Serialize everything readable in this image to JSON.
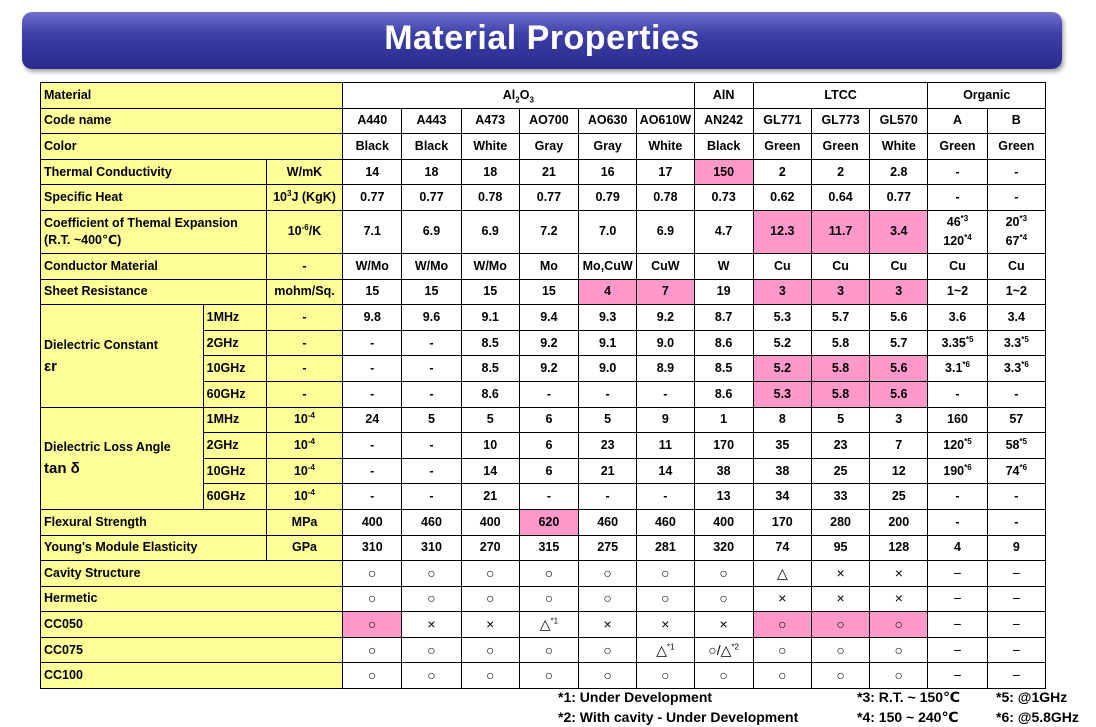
{
  "title": "Material Properties",
  "groups": {
    "al2o3": "Al",
    "al2o3_sub1": "2",
    "al2o3_mid": "O",
    "al2o3_sub2": "3",
    "aln": "AlN",
    "ltcc": "LTCC",
    "organic": "Organic"
  },
  "rows": {
    "material": "Material",
    "code_name": "Code name",
    "color": "Color",
    "thermal_cond": "Thermal Conductivity",
    "thermal_cond_unit": "W/mK",
    "specific_heat": "Specific Heat",
    "specific_heat_unit_a": "10",
    "specific_heat_unit_sup": "3",
    "specific_heat_unit_b": "J (KgK)",
    "cte_line1": "Coefficient of Themal Expansion",
    "cte_line2": "(R.T. ~400℃)",
    "cte_unit_a": "10",
    "cte_unit_sup": "-6",
    "cte_unit_b": "/K",
    "conductor": "Conductor Material",
    "conductor_unit": "-",
    "sheet_res": "Sheet Resistance",
    "sheet_res_unit": "mohm/Sq.",
    "dielectric_const": "Dielectric Constant",
    "dielectric_const_sym": "εr",
    "loss_angle": "Dielectric Loss Angle",
    "loss_angle_sym": "tan δ",
    "flexural": "Flexural Strength",
    "flexural_unit": "MPa",
    "youngs": "Young's Module Elasticity",
    "youngs_unit": "GPa",
    "cavity": "Cavity Structure",
    "hermetic": "Hermetic",
    "cc050": "CC050",
    "cc075": "CC075",
    "cc100": "CC100"
  },
  "freq": [
    "1MHz",
    "2GHz",
    "10GHz",
    "60GHz"
  ],
  "dash": "-",
  "loss_unit_a": "10",
  "loss_unit_sup": "-4",
  "codes": [
    "A440",
    "A443",
    "A473",
    "AO700",
    "AO630",
    "AO610W",
    "AN242",
    "GL771",
    "GL773",
    "GL570",
    "A",
    "B"
  ],
  "colors": [
    "Black",
    "Black",
    "White",
    "Gray",
    "Gray",
    "White",
    "Black",
    "Green",
    "Green",
    "White",
    "Green",
    "Green"
  ],
  "thermal": [
    "14",
    "18",
    "18",
    "21",
    "16",
    "17",
    "150",
    "2",
    "2",
    "2.8",
    "-",
    "-"
  ],
  "specific": [
    "0.77",
    "0.77",
    "0.78",
    "0.77",
    "0.79",
    "0.78",
    "0.73",
    "0.62",
    "0.64",
    "0.77",
    "-",
    "-"
  ],
  "cte": [
    "7.1",
    "6.9",
    "6.9",
    "7.2",
    "7.0",
    "6.9",
    "4.7",
    "12.3",
    "11.7",
    "3.4"
  ],
  "cte_organic": {
    "a1": "46",
    "a1_sup": "*3",
    "a2": "120",
    "a2_sup": "*4",
    "b1": "20",
    "b1_sup": "*3",
    "b2": "67",
    "b2_sup": "*4"
  },
  "conductor_vals": [
    "W/Mo",
    "W/Mo",
    "W/Mo",
    "Mo",
    "Mo,CuW",
    "CuW",
    "W",
    "Cu",
    "Cu",
    "Cu",
    "Cu",
    "Cu"
  ],
  "sheet": [
    "15",
    "15",
    "15",
    "15",
    "4",
    "7",
    "19",
    "3",
    "3",
    "3",
    "1~2",
    "1~2"
  ],
  "dc": [
    [
      "9.8",
      "9.6",
      "9.1",
      "9.4",
      "9.3",
      "9.2",
      "8.7",
      "5.3",
      "5.7",
      "5.6",
      "3.6",
      "3.4"
    ],
    [
      "-",
      "-",
      "8.5",
      "9.2",
      "9.1",
      "9.0",
      "8.6",
      "5.2",
      "5.8",
      "5.7",
      "3.35",
      "3.3"
    ],
    [
      "-",
      "-",
      "8.5",
      "9.2",
      "9.0",
      "8.9",
      "8.5",
      "5.2",
      "5.8",
      "5.6",
      "3.1",
      "3.3"
    ],
    [
      "-",
      "-",
      "8.6",
      "-",
      "-",
      "-",
      "8.6",
      "5.3",
      "5.8",
      "5.6",
      "-",
      "-"
    ]
  ],
  "dc_sup": {
    "r1_a": "*5",
    "r1_b": "*5",
    "r2_a": "*6",
    "r2_b": "*6"
  },
  "loss": [
    [
      "24",
      "5",
      "5",
      "6",
      "5",
      "9",
      "1",
      "8",
      "5",
      "3",
      "160",
      "57"
    ],
    [
      "-",
      "-",
      "10",
      "6",
      "23",
      "11",
      "170",
      "35",
      "23",
      "7",
      "120",
      "58"
    ],
    [
      "-",
      "-",
      "14",
      "6",
      "21",
      "14",
      "38",
      "38",
      "25",
      "12",
      "190",
      "74"
    ],
    [
      "-",
      "-",
      "21",
      "-",
      "-",
      "-",
      "13",
      "34",
      "33",
      "25",
      "-",
      "-"
    ]
  ],
  "loss_sup": {
    "r1_a": "*5",
    "r1_b": "*5",
    "r2_a": "*6",
    "r2_b": "*6"
  },
  "flex": [
    "400",
    "460",
    "400",
    "620",
    "460",
    "460",
    "400",
    "170",
    "280",
    "200",
    "-",
    "-"
  ],
  "young": [
    "310",
    "310",
    "270",
    "315",
    "275",
    "281",
    "320",
    "74",
    "95",
    "128",
    "4",
    "9"
  ],
  "cavity_vals": [
    "○",
    "○",
    "○",
    "○",
    "○",
    "○",
    "○",
    "△",
    "×",
    "×",
    "−",
    "−"
  ],
  "hermetic_vals": [
    "○",
    "○",
    "○",
    "○",
    "○",
    "○",
    "○",
    "×",
    "×",
    "×",
    "−",
    "−"
  ],
  "cc050_vals": [
    "○",
    "×",
    "×",
    "△",
    "×",
    "×",
    "×",
    "○",
    "○",
    "○",
    "−",
    "−"
  ],
  "cc050_sup": "*1",
  "cc075_vals": [
    "○",
    "○",
    "○",
    "○",
    "○",
    "△",
    "○/△",
    "○",
    "○",
    "○",
    "−",
    "−"
  ],
  "cc075_sup_ao610w": "*1",
  "cc075_sup_an242": "*2",
  "cc100_vals": [
    "○",
    "○",
    "○",
    "○",
    "○",
    "○",
    "○",
    "○",
    "○",
    "○",
    "−",
    "−"
  ],
  "footnotes": {
    "n1": "*1: Under Development",
    "n2": "*2: With cavity - Under Development",
    "n3": "*3: R.T. ~ 150℃",
    "n4": "*4: 150 ~ 240℃",
    "n5": "*5: @1GHz",
    "n6": "*6: @5.8GHz"
  },
  "colors_theme": {
    "label_bg": "#ffff99",
    "highlight": "#ff99cc",
    "banner": "#3d3ea8"
  }
}
